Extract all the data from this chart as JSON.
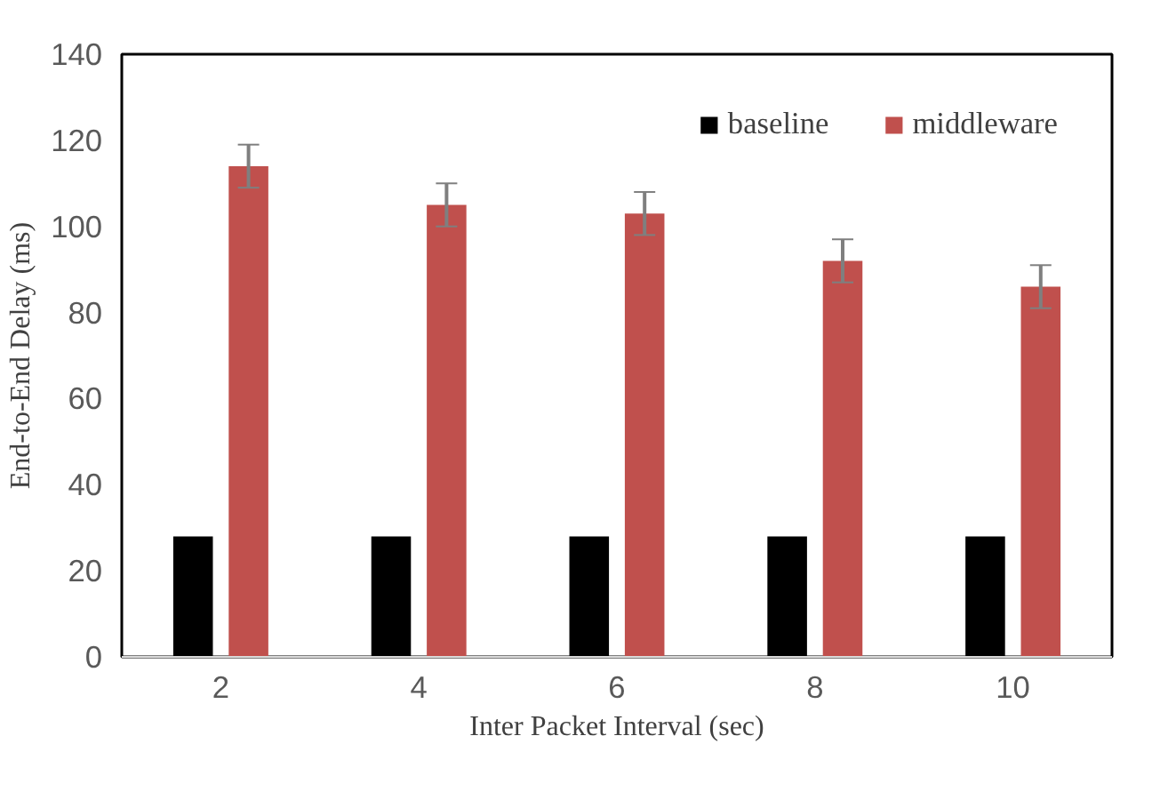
{
  "chart_data": {
    "type": "bar",
    "xlabel": "Inter Packet Interval (sec)",
    "ylabel": "End-to-End Delay (ms)",
    "categories": [
      "2",
      "4",
      "6",
      "8",
      "10"
    ],
    "series": [
      {
        "name": "baseline",
        "color": "#000000",
        "values": [
          28,
          28,
          28,
          28,
          28
        ]
      },
      {
        "name": "middleware",
        "color": "#c0504d",
        "values": [
          114,
          105,
          103,
          92,
          86
        ],
        "errors": [
          5,
          5,
          5,
          5,
          5
        ]
      }
    ],
    "ylim": [
      0,
      140
    ],
    "yticks": [
      0,
      20,
      40,
      60,
      80,
      100,
      120,
      140
    ],
    "grid": false,
    "legend": "top right"
  }
}
